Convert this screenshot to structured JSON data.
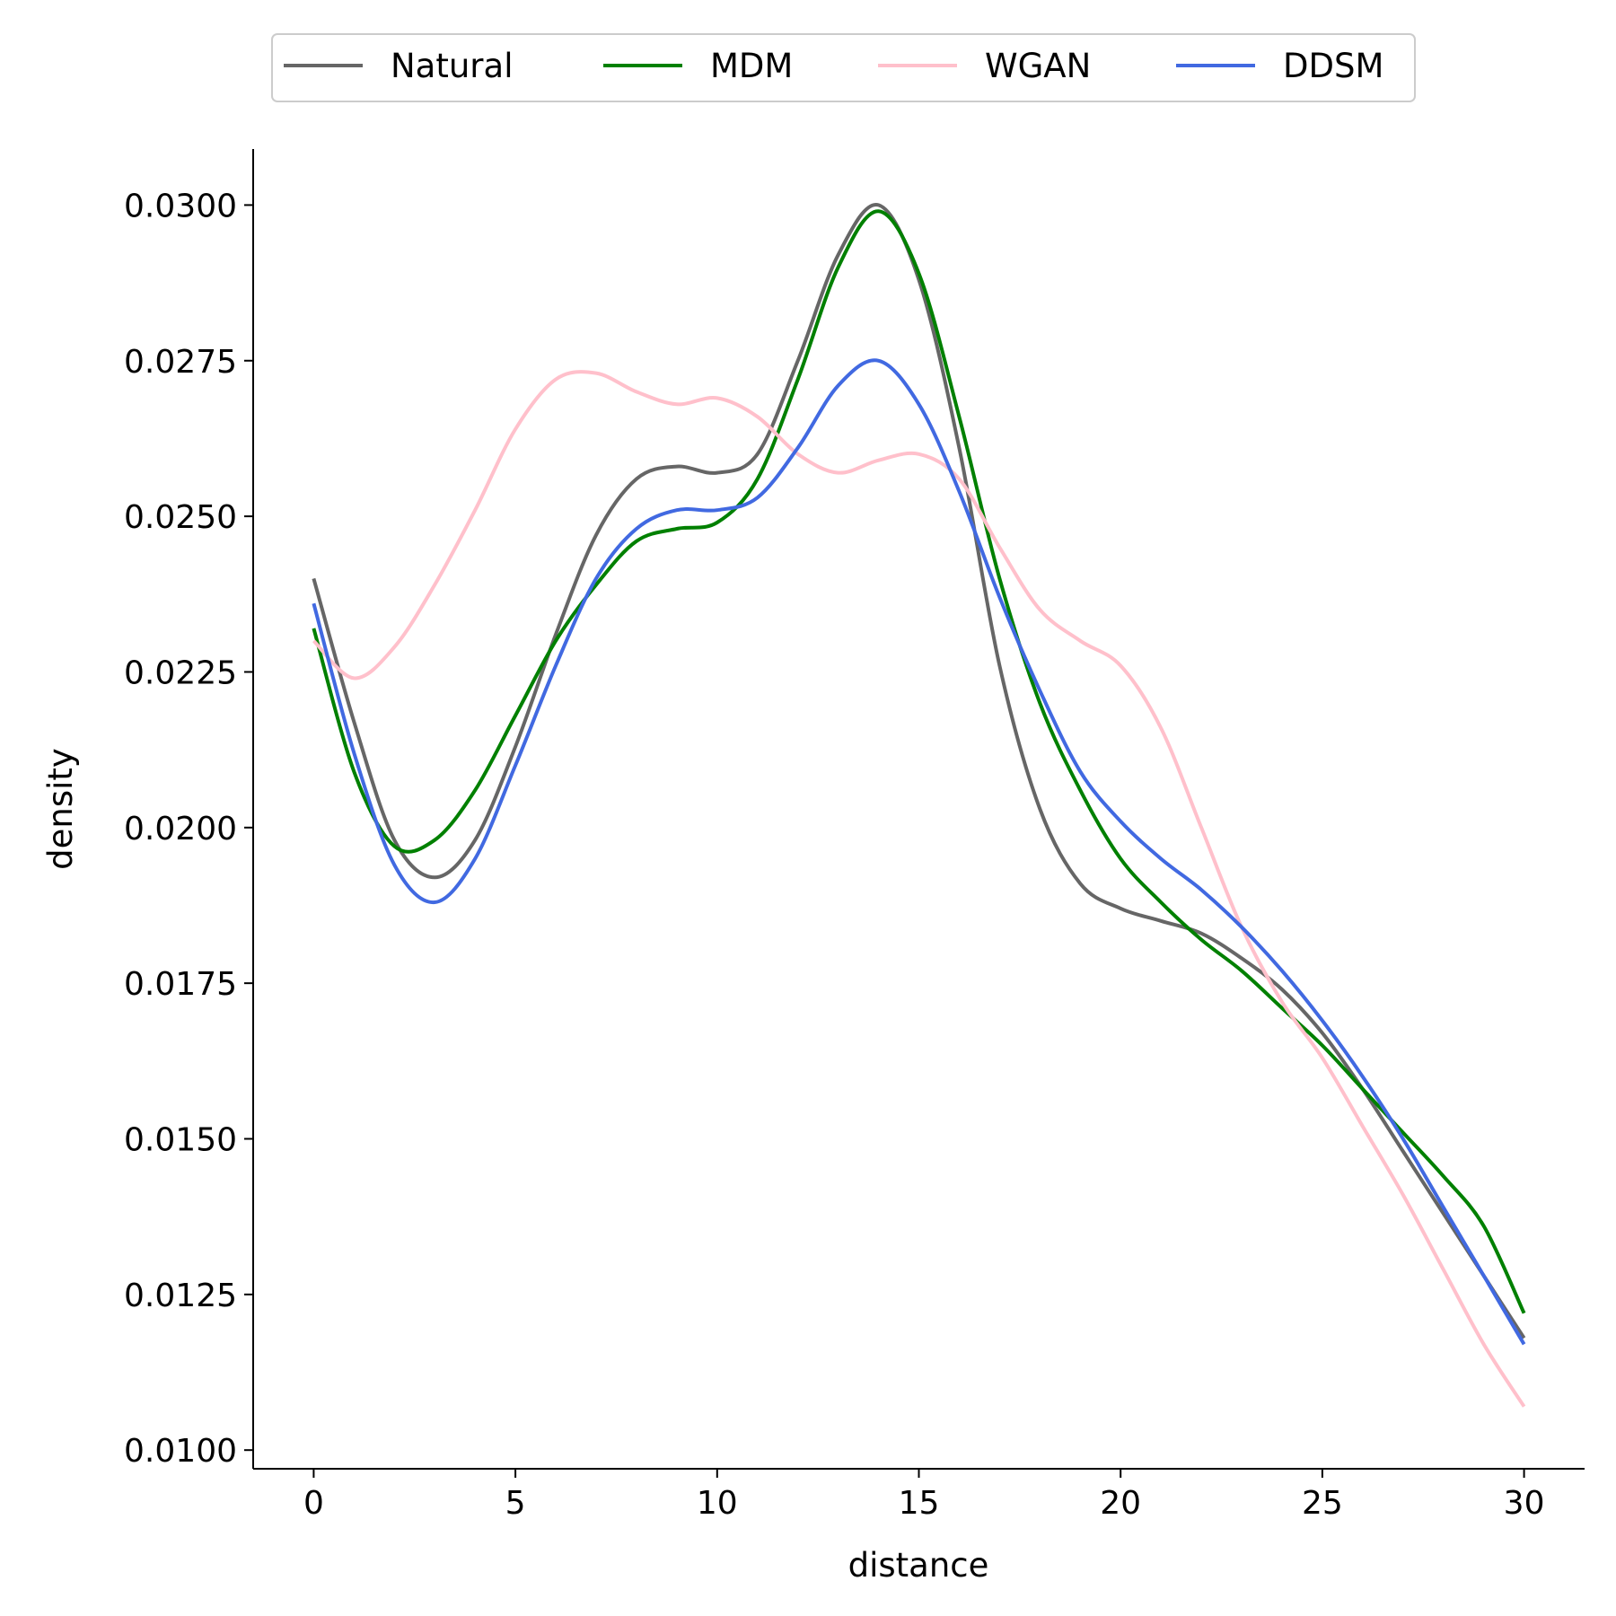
{
  "chart_data": {
    "type": "line",
    "title": "",
    "xlabel": "distance",
    "ylabel": "density",
    "xlim": [
      -1.5,
      31.5
    ],
    "ylim": [
      0.0097,
      0.0309
    ],
    "xticks": [
      0,
      5,
      10,
      15,
      20,
      25,
      30
    ],
    "yticks": [
      0.01,
      0.0125,
      0.015,
      0.0175,
      0.02,
      0.0225,
      0.025,
      0.0275,
      0.03
    ],
    "xtick_labels": [
      "0",
      "5",
      "10",
      "15",
      "20",
      "25",
      "30"
    ],
    "ytick_labels": [
      "0.0100",
      "0.0125",
      "0.0150",
      "0.0175",
      "0.0200",
      "0.0225",
      "0.0250",
      "0.0275",
      "0.0300"
    ],
    "grid": false,
    "legend_position": "top-center",
    "series": [
      {
        "name": "Natural",
        "color": "#666666",
        "x": [
          0,
          1,
          2,
          3,
          4,
          5,
          6,
          7,
          8,
          9,
          10,
          11,
          12,
          13,
          14,
          15,
          16,
          17,
          18,
          19,
          20,
          21,
          22,
          23,
          24,
          25,
          26,
          27,
          28,
          29,
          30
        ],
        "y": [
          0.024,
          0.0217,
          0.0198,
          0.0192,
          0.0198,
          0.0213,
          0.0231,
          0.0247,
          0.0256,
          0.0258,
          0.0257,
          0.026,
          0.0275,
          0.0292,
          0.03,
          0.0288,
          0.0261,
          0.0226,
          0.0203,
          0.0191,
          0.0187,
          0.0185,
          0.0183,
          0.0179,
          0.0174,
          0.0167,
          0.0158,
          0.0148,
          0.0138,
          0.0128,
          0.0118
        ]
      },
      {
        "name": "MDM",
        "color": "#008000",
        "x": [
          0,
          1,
          2,
          3,
          4,
          5,
          6,
          7,
          8,
          9,
          10,
          11,
          12,
          13,
          14,
          15,
          16,
          17,
          18,
          19,
          20,
          21,
          22,
          23,
          24,
          25,
          26,
          27,
          28,
          29,
          30
        ],
        "y": [
          0.0232,
          0.0209,
          0.0197,
          0.0198,
          0.0206,
          0.0218,
          0.023,
          0.0239,
          0.0246,
          0.0248,
          0.0249,
          0.0256,
          0.0272,
          0.029,
          0.0299,
          0.0289,
          0.0266,
          0.024,
          0.022,
          0.0206,
          0.0195,
          0.0188,
          0.0182,
          0.0177,
          0.0171,
          0.0165,
          0.0158,
          0.0151,
          0.0144,
          0.0136,
          0.0122
        ]
      },
      {
        "name": "WGAN",
        "color": "#ffc0cb",
        "x": [
          0,
          1,
          2,
          3,
          4,
          5,
          6,
          7,
          8,
          9,
          10,
          11,
          12,
          13,
          14,
          15,
          16,
          17,
          18,
          19,
          20,
          21,
          22,
          23,
          24,
          25,
          26,
          27,
          28,
          29,
          30
        ],
        "y": [
          0.023,
          0.0224,
          0.0229,
          0.0239,
          0.0251,
          0.0264,
          0.0272,
          0.0273,
          0.027,
          0.0268,
          0.0269,
          0.0266,
          0.026,
          0.0257,
          0.0259,
          0.026,
          0.0256,
          0.0245,
          0.0235,
          0.023,
          0.0226,
          0.0216,
          0.02,
          0.0184,
          0.0172,
          0.0163,
          0.0152,
          0.0141,
          0.0129,
          0.0117,
          0.0107
        ]
      },
      {
        "name": "DDSM",
        "color": "#4169e1",
        "x": [
          0,
          1,
          2,
          3,
          4,
          5,
          6,
          7,
          8,
          9,
          10,
          11,
          12,
          13,
          14,
          15,
          16,
          17,
          18,
          19,
          20,
          21,
          22,
          23,
          24,
          25,
          26,
          27,
          28,
          29,
          30
        ],
        "y": [
          0.0236,
          0.0212,
          0.0194,
          0.0188,
          0.0195,
          0.021,
          0.0226,
          0.024,
          0.0248,
          0.0251,
          0.0251,
          0.0253,
          0.0261,
          0.0271,
          0.0275,
          0.0268,
          0.0254,
          0.0237,
          0.0222,
          0.0209,
          0.0201,
          0.0195,
          0.019,
          0.0184,
          0.0177,
          0.0169,
          0.016,
          0.015,
          0.0139,
          0.0128,
          0.0117
        ]
      }
    ]
  }
}
